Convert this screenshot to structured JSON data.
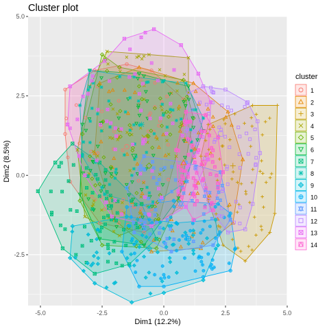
{
  "chart_data": {
    "type": "scatter",
    "title": "Cluster plot",
    "xlabel": "Dim1 (12.2%)",
    "ylabel": "Dim2 (8.5%)",
    "xlim": [
      -5.5,
      5.0
    ],
    "ylim": [
      -4.1,
      5.0
    ],
    "xticks": [
      -5.0,
      -2.5,
      0.0,
      2.5,
      5.0
    ],
    "yticks": [
      -2.5,
      0.0,
      2.5,
      5.0
    ],
    "xtick_labels": [
      "-5.0",
      "-2.5",
      "0.0",
      "2.5",
      "5.0"
    ],
    "ytick_labels": [
      "-2.5",
      "0.0",
      "2.5",
      "5.0"
    ],
    "grid": true,
    "legend_position": "right",
    "legend_title": "cluster",
    "series": [
      {
        "name": "1",
        "color": "#F8766D",
        "marker": "circle",
        "centroid": [
          -1.5,
          0.9
        ],
        "hull": [
          [
            -4.0,
            2.7
          ],
          [
            -2.8,
            3.3
          ],
          [
            -1.5,
            3.5
          ],
          [
            -0.5,
            3.3
          ],
          [
            0.8,
            2.4
          ],
          [
            1.2,
            0.8
          ],
          [
            0.7,
            -1.0
          ],
          [
            -0.8,
            -1.8
          ],
          [
            -2.6,
            -1.5
          ],
          [
            -3.8,
            -0.2
          ],
          [
            -4.0,
            1.3
          ]
        ]
      },
      {
        "name": "2",
        "color": "#E58700",
        "marker": "triangle",
        "centroid": [
          0.8,
          0.4
        ],
        "hull": [
          [
            -2.6,
            2.9
          ],
          [
            -1.0,
            3.4
          ],
          [
            1.2,
            2.9
          ],
          [
            2.6,
            2.0
          ],
          [
            3.2,
            0.5
          ],
          [
            2.8,
            -1.5
          ],
          [
            1.5,
            -2.3
          ],
          [
            -0.5,
            -2.4
          ],
          [
            -2.0,
            -1.4
          ],
          [
            -2.8,
            0.7
          ]
        ]
      },
      {
        "name": "3",
        "color": "#C99800",
        "marker": "plus",
        "centroid": [
          2.8,
          0.3
        ],
        "hull": [
          [
            1.8,
            1.6
          ],
          [
            3.6,
            2.2
          ],
          [
            4.6,
            2.2
          ],
          [
            4.5,
            -1.2
          ],
          [
            4.3,
            -1.8
          ],
          [
            3.3,
            -2.7
          ],
          [
            2.4,
            -2.2
          ],
          [
            1.8,
            -0.8
          ],
          [
            1.5,
            0.6
          ]
        ]
      },
      {
        "name": "4",
        "color": "#A3A500",
        "marker": "cross",
        "centroid": [
          -0.8,
          1.2
        ],
        "hull": [
          [
            -2.3,
            3.9
          ],
          [
            -0.6,
            3.8
          ],
          [
            1.0,
            3.7
          ],
          [
            1.0,
            2.6
          ],
          [
            0.5,
            0.6
          ],
          [
            -0.2,
            -1.4
          ],
          [
            -1.8,
            -1.9
          ],
          [
            -3.2,
            -1.3
          ],
          [
            -3.5,
            0.8
          ],
          [
            -3.0,
            2.8
          ]
        ]
      },
      {
        "name": "5",
        "color": "#6BB100",
        "marker": "diamond",
        "centroid": [
          -0.6,
          0.3
        ],
        "hull": [
          [
            -2.5,
            3.8
          ],
          [
            -1.8,
            3.4
          ],
          [
            0.8,
            3.0
          ],
          [
            1.2,
            1.8
          ],
          [
            0.6,
            -0.8
          ],
          [
            -0.3,
            -2.3
          ],
          [
            -2.5,
            -2.2
          ],
          [
            -3.4,
            -0.8
          ],
          [
            -3.3,
            1.3
          ]
        ]
      },
      {
        "name": "6",
        "color": "#00BA38",
        "marker": "triangle-down",
        "centroid": [
          -1.2,
          0.6
        ],
        "hull": [
          [
            -3.0,
            3.3
          ],
          [
            -1.0,
            3.2
          ],
          [
            1.0,
            2.8
          ],
          [
            1.6,
            1.4
          ],
          [
            0.6,
            -0.7
          ],
          [
            -0.8,
            -2.2
          ],
          [
            -2.6,
            -2.0
          ],
          [
            -3.4,
            -0.6
          ],
          [
            -3.3,
            1.6
          ]
        ]
      },
      {
        "name": "7",
        "color": "#00BF7D",
        "marker": "square-cross",
        "centroid": [
          -2.2,
          -1.0
        ],
        "hull": [
          [
            -3.7,
            1.0
          ],
          [
            -2.6,
            0.4
          ],
          [
            -0.9,
            -0.9
          ],
          [
            -0.3,
            -2.0
          ],
          [
            -1.4,
            -2.8
          ],
          [
            -2.8,
            -3.1
          ],
          [
            -4.1,
            -2.3
          ],
          [
            -5.1,
            -0.5
          ],
          [
            -4.4,
            0.4
          ]
        ]
      },
      {
        "name": "8",
        "color": "#00C0AF",
        "marker": "asterisk",
        "centroid": [
          -0.9,
          1.6
        ],
        "hull": [
          [
            -3.0,
            3.3
          ],
          [
            -1.2,
            3.1
          ],
          [
            0.9,
            2.9
          ],
          [
            1.6,
            1.8
          ],
          [
            0.9,
            -0.2
          ],
          [
            -0.6,
            -1.0
          ],
          [
            -2.4,
            -0.6
          ],
          [
            -3.3,
            0.6
          ],
          [
            -3.4,
            2.2
          ]
        ]
      },
      {
        "name": "9",
        "color": "#00BCD8",
        "marker": "diamond-plus",
        "centroid": [
          -0.6,
          -2.3
        ],
        "hull": [
          [
            -3.7,
            -1.6
          ],
          [
            -1.5,
            -1.3
          ],
          [
            0.5,
            -1.5
          ],
          [
            2.1,
            -1.4
          ],
          [
            2.2,
            -2.2
          ],
          [
            1.6,
            -3.3
          ],
          [
            0.0,
            -3.7
          ],
          [
            -1.3,
            -4.0
          ],
          [
            -2.8,
            -3.4
          ],
          [
            -3.8,
            -2.6
          ]
        ]
      },
      {
        "name": "10",
        "color": "#00B0F6",
        "marker": "circle-plus",
        "centroid": [
          1.0,
          -2.0
        ],
        "hull": [
          [
            -1.5,
            -1.0
          ],
          [
            0.4,
            -0.8
          ],
          [
            2.2,
            -0.9
          ],
          [
            2.7,
            -1.2
          ],
          [
            2.9,
            -2.3
          ],
          [
            2.7,
            -3.0
          ],
          [
            1.6,
            -3.2
          ],
          [
            0.0,
            -3.5
          ],
          [
            -1.0,
            -3.5
          ],
          [
            -1.7,
            -2.4
          ]
        ]
      },
      {
        "name": "11",
        "color": "#619CFF",
        "marker": "star",
        "centroid": [
          0.7,
          -0.9
        ],
        "hull": [
          [
            -0.8,
            0.6
          ],
          [
            0.9,
            0.4
          ],
          [
            2.3,
            0.1
          ],
          [
            2.7,
            -1.4
          ],
          [
            2.0,
            -2.2
          ],
          [
            0.3,
            -2.4
          ],
          [
            -1.2,
            -1.8
          ],
          [
            -1.5,
            -0.4
          ]
        ]
      },
      {
        "name": "12",
        "color": "#B983FF",
        "marker": "square",
        "centroid": [
          2.3,
          1.3
        ],
        "hull": [
          [
            1.0,
            2.6
          ],
          [
            1.6,
            2.8
          ],
          [
            2.5,
            2.7
          ],
          [
            3.4,
            2.3
          ],
          [
            3.8,
            1.7
          ],
          [
            3.9,
            0.7
          ],
          [
            3.6,
            -0.9
          ],
          [
            3.3,
            -1.7
          ],
          [
            2.6,
            -1.8
          ],
          [
            1.9,
            -1.1
          ],
          [
            1.3,
            0.2
          ],
          [
            0.9,
            1.4
          ]
        ]
      },
      {
        "name": "13",
        "color": "#E76BF3",
        "marker": "square-x",
        "centroid": [
          -0.8,
          1.1
        ],
        "hull": [
          [
            -1.6,
            4.3
          ],
          [
            -0.4,
            4.6
          ],
          [
            0.7,
            4.1
          ],
          [
            1.4,
            3.2
          ],
          [
            1.9,
            2.3
          ],
          [
            1.8,
            0.5
          ],
          [
            0.9,
            -1.0
          ],
          [
            -0.5,
            -1.6
          ],
          [
            -2.1,
            -1.3
          ],
          [
            -3.2,
            0.0
          ],
          [
            -3.9,
            1.6
          ],
          [
            -3.8,
            2.8
          ],
          [
            -2.4,
            3.6
          ]
        ]
      },
      {
        "name": "14",
        "color": "#FD61D1",
        "marker": "triangle-square",
        "centroid": [
          1.6,
          0.4
        ],
        "hull": [
          [
            0.9,
            2.0
          ],
          [
            1.7,
            1.9
          ],
          [
            2.2,
            1.2
          ],
          [
            2.4,
            0.1
          ],
          [
            2.0,
            -1.1
          ],
          [
            1.2,
            -1.4
          ],
          [
            0.6,
            -0.6
          ],
          [
            0.5,
            0.8
          ]
        ]
      }
    ]
  }
}
